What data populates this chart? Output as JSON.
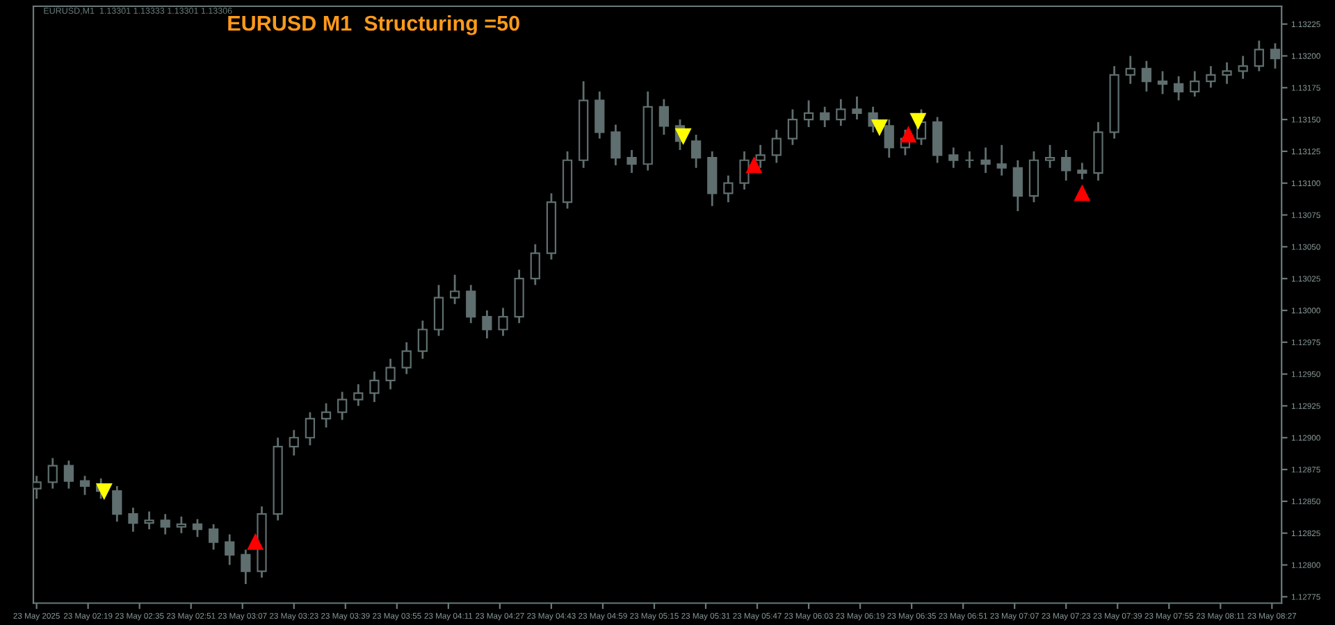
{
  "chart_data": {
    "type": "candlestick",
    "title": "EURUSD M1  Structuring =50",
    "annotations": [
      "EURUSD,M1  1.13301 1.13333 1.13301 1.13306"
    ],
    "color": "#5f6e6e",
    "x": [
      "2025-05-23T02:03",
      "2025-05-23T02:08",
      "2025-05-23T02:13",
      "2025-05-23T02:18",
      "2025-05-23T02:23",
      "2025-05-23T02:28",
      "2025-05-23T02:33",
      "2025-05-23T02:38",
      "2025-05-23T02:43",
      "2025-05-23T02:48",
      "2025-05-23T02:53",
      "2025-05-23T02:58",
      "2025-05-23T03:03",
      "2025-05-23T03:08",
      "2025-05-23T03:13",
      "2025-05-23T03:18",
      "2025-05-23T03:23",
      "2025-05-23T03:28",
      "2025-05-23T03:33",
      "2025-05-23T03:38",
      "2025-05-23T03:43",
      "2025-05-23T03:48",
      "2025-05-23T03:53",
      "2025-05-23T03:58",
      "2025-05-23T04:03",
      "2025-05-23T04:08",
      "2025-05-23T04:13",
      "2025-05-23T04:18",
      "2025-05-23T04:23",
      "2025-05-23T04:28",
      "2025-05-23T04:33",
      "2025-05-23T04:38",
      "2025-05-23T04:43",
      "2025-05-23T04:48",
      "2025-05-23T04:53",
      "2025-05-23T04:58",
      "2025-05-23T05:03",
      "2025-05-23T05:08",
      "2025-05-23T05:13",
      "2025-05-23T05:18",
      "2025-05-23T05:23",
      "2025-05-23T05:28",
      "2025-05-23T05:33",
      "2025-05-23T05:38",
      "2025-05-23T05:43",
      "2025-05-23T05:48",
      "2025-05-23T05:53",
      "2025-05-23T05:58",
      "2025-05-23T06:03",
      "2025-05-23T06:08",
      "2025-05-23T06:13",
      "2025-05-23T06:18",
      "2025-05-23T06:23",
      "2025-05-23T06:28",
      "2025-05-23T06:33",
      "2025-05-23T06:38",
      "2025-05-23T06:43",
      "2025-05-23T06:48",
      "2025-05-23T06:53",
      "2025-05-23T06:58",
      "2025-05-23T07:03",
      "2025-05-23T07:08",
      "2025-05-23T07:13",
      "2025-05-23T07:18",
      "2025-05-23T07:23",
      "2025-05-23T07:28",
      "2025-05-23T07:33",
      "2025-05-23T07:38",
      "2025-05-23T07:43",
      "2025-05-23T07:48",
      "2025-05-23T07:53",
      "2025-05-23T07:58",
      "2025-05-23T08:03",
      "2025-05-23T08:08",
      "2025-05-23T08:13",
      "2025-05-23T08:18",
      "2025-05-23T08:23",
      "2025-05-23T08:28"
    ],
    "ohlc": [
      [
        1.1286,
        1.1287,
        1.12852,
        1.12865
      ],
      [
        1.12865,
        1.12884,
        1.1286,
        1.12878
      ],
      [
        1.12878,
        1.12882,
        1.1286,
        1.12866
      ],
      [
        1.12866,
        1.1287,
        1.12855,
        1.12862
      ],
      [
        1.12862,
        1.12868,
        1.12852,
        1.12858
      ],
      [
        1.12858,
        1.12862,
        1.12834,
        1.1284
      ],
      [
        1.1284,
        1.12845,
        1.12826,
        1.12833
      ],
      [
        1.12833,
        1.12842,
        1.12828,
        1.12835
      ],
      [
        1.12835,
        1.1284,
        1.12824,
        1.1283
      ],
      [
        1.1283,
        1.12838,
        1.12825,
        1.12832
      ],
      [
        1.12832,
        1.12836,
        1.12822,
        1.12828
      ],
      [
        1.12828,
        1.12832,
        1.12812,
        1.12818
      ],
      [
        1.12818,
        1.12824,
        1.128,
        1.12808
      ],
      [
        1.12808,
        1.12812,
        1.12785,
        1.12795
      ],
      [
        1.12795,
        1.12846,
        1.1279,
        1.1284
      ],
      [
        1.1284,
        1.129,
        1.12835,
        1.12893
      ],
      [
        1.12893,
        1.12906,
        1.12886,
        1.129
      ],
      [
        1.129,
        1.1292,
        1.12894,
        1.12915
      ],
      [
        1.12915,
        1.12927,
        1.12908,
        1.1292
      ],
      [
        1.1292,
        1.12936,
        1.12914,
        1.1293
      ],
      [
        1.1293,
        1.12942,
        1.12925,
        1.12935
      ],
      [
        1.12935,
        1.12952,
        1.12928,
        1.12945
      ],
      [
        1.12945,
        1.12962,
        1.12938,
        1.12955
      ],
      [
        1.12955,
        1.12975,
        1.1295,
        1.12968
      ],
      [
        1.12968,
        1.12992,
        1.12962,
        1.12985
      ],
      [
        1.12985,
        1.1302,
        1.1298,
        1.1301
      ],
      [
        1.1301,
        1.13028,
        1.13005,
        1.13015
      ],
      [
        1.13015,
        1.1302,
        1.1299,
        1.12995
      ],
      [
        1.12995,
        1.13,
        1.12978,
        1.12985
      ],
      [
        1.12985,
        1.13002,
        1.1298,
        1.12995
      ],
      [
        1.12995,
        1.13032,
        1.1299,
        1.13025
      ],
      [
        1.13025,
        1.13052,
        1.1302,
        1.13045
      ],
      [
        1.13045,
        1.13092,
        1.1304,
        1.13085
      ],
      [
        1.13085,
        1.13125,
        1.1308,
        1.13118
      ],
      [
        1.13118,
        1.1318,
        1.13112,
        1.13165
      ],
      [
        1.13165,
        1.13172,
        1.13135,
        1.1314
      ],
      [
        1.1314,
        1.13146,
        1.13114,
        1.1312
      ],
      [
        1.1312,
        1.13126,
        1.13108,
        1.13115
      ],
      [
        1.13115,
        1.13172,
        1.1311,
        1.1316
      ],
      [
        1.1316,
        1.13166,
        1.13138,
        1.13145
      ],
      [
        1.13145,
        1.1315,
        1.13126,
        1.13133
      ],
      [
        1.13133,
        1.13138,
        1.13112,
        1.1312
      ],
      [
        1.1312,
        1.13125,
        1.13082,
        1.13092
      ],
      [
        1.13092,
        1.13106,
        1.13085,
        1.131
      ],
      [
        1.131,
        1.13125,
        1.13095,
        1.13118
      ],
      [
        1.13118,
        1.1313,
        1.13112,
        1.13122
      ],
      [
        1.13122,
        1.13142,
        1.13116,
        1.13135
      ],
      [
        1.13135,
        1.13158,
        1.1313,
        1.1315
      ],
      [
        1.1315,
        1.13165,
        1.13144,
        1.13155
      ],
      [
        1.13155,
        1.1316,
        1.13144,
        1.1315
      ],
      [
        1.1315,
        1.13166,
        1.13145,
        1.13158
      ],
      [
        1.13158,
        1.13168,
        1.1315,
        1.13155
      ],
      [
        1.13155,
        1.1316,
        1.1314,
        1.13145
      ],
      [
        1.13145,
        1.1315,
        1.1312,
        1.13128
      ],
      [
        1.13128,
        1.13142,
        1.13122,
        1.13135
      ],
      [
        1.13135,
        1.13158,
        1.1313,
        1.13148
      ],
      [
        1.13148,
        1.13152,
        1.13116,
        1.13122
      ],
      [
        1.13122,
        1.13128,
        1.13112,
        1.13118
      ],
      [
        1.13118,
        1.13125,
        1.13112,
        1.13118
      ],
      [
        1.13118,
        1.13128,
        1.13108,
        1.13115
      ],
      [
        1.13115,
        1.1313,
        1.13106,
        1.13112
      ],
      [
        1.13112,
        1.13118,
        1.13078,
        1.1309
      ],
      [
        1.1309,
        1.13125,
        1.13085,
        1.13118
      ],
      [
        1.13118,
        1.1313,
        1.13112,
        1.1312
      ],
      [
        1.1312,
        1.13126,
        1.13102,
        1.1311
      ],
      [
        1.1311,
        1.13116,
        1.13103,
        1.13108
      ],
      [
        1.13108,
        1.13148,
        1.13102,
        1.1314
      ],
      [
        1.1314,
        1.13192,
        1.13135,
        1.13185
      ],
      [
        1.13185,
        1.132,
        1.13178,
        1.1319
      ],
      [
        1.1319,
        1.13196,
        1.13172,
        1.1318
      ],
      [
        1.1318,
        1.13188,
        1.1317,
        1.13178
      ],
      [
        1.13178,
        1.13184,
        1.13165,
        1.13172
      ],
      [
        1.13172,
        1.13188,
        1.13168,
        1.1318
      ],
      [
        1.1318,
        1.13192,
        1.13175,
        1.13185
      ],
      [
        1.13185,
        1.13195,
        1.13178,
        1.13188
      ],
      [
        1.13188,
        1.132,
        1.13182,
        1.13192
      ],
      [
        1.13192,
        1.13212,
        1.13188,
        1.13205
      ],
      [
        1.13205,
        1.1321,
        1.1319,
        1.13198
      ]
    ],
    "series": [
      {
        "type": "scatter",
        "color": "#ffff00",
        "x": [
          "2025-05-23T02:24",
          "2025-05-23T05:24",
          "2025-05-23T06:25",
          "2025-05-23T06:37"
        ],
        "values": [
          1.12858,
          1.13137,
          1.13144,
          1.13149
        ]
      },
      {
        "type": "scatter",
        "color": "#ff0000",
        "x": [
          "2025-05-23T03:11",
          "2025-05-23T05:46",
          "2025-05-23T06:34",
          "2025-05-23T07:28"
        ],
        "values": [
          1.12818,
          1.13114,
          1.13138,
          1.13092
        ]
      }
    ],
    "marker": "triangle",
    "xlim": [
      "2025-05-23T02:02",
      "2025-05-23T08:30"
    ],
    "xticks": [
      {
        "value": "2025-05-23T02:03",
        "label": "23 May 2025"
      },
      {
        "value": "2025-05-23T02:19",
        "label": "23 May 02:19"
      },
      {
        "value": "2025-05-23T02:35",
        "label": "23 May 02:35"
      },
      {
        "value": "2025-05-23T02:51",
        "label": "23 May 02:51"
      },
      {
        "value": "2025-05-23T03:07",
        "label": "23 May 03:07"
      },
      {
        "value": "2025-05-23T03:23",
        "label": "23 May 03:23"
      },
      {
        "value": "2025-05-23T03:39",
        "label": "23 May 03:39"
      },
      {
        "value": "2025-05-23T03:55",
        "label": "23 May 03:55"
      },
      {
        "value": "2025-05-23T04:11",
        "label": "23 May 04:11"
      },
      {
        "value": "2025-05-23T04:27",
        "label": "23 May 04:27"
      },
      {
        "value": "2025-05-23T04:43",
        "label": "23 May 04:43"
      },
      {
        "value": "2025-05-23T04:59",
        "label": "23 May 04:59"
      },
      {
        "value": "2025-05-23T05:15",
        "label": "23 May 05:15"
      },
      {
        "value": "2025-05-23T05:31",
        "label": "23 May 05:31"
      },
      {
        "value": "2025-05-23T05:47",
        "label": "23 May 05:47"
      },
      {
        "value": "2025-05-23T06:03",
        "label": "23 May 06:03"
      },
      {
        "value": "2025-05-23T06:19",
        "label": "23 May 06:19"
      },
      {
        "value": "2025-05-23T06:35",
        "label": "23 May 06:35"
      },
      {
        "value": "2025-05-23T06:51",
        "label": "23 May 06:51"
      },
      {
        "value": "2025-05-23T07:07",
        "label": "23 May 07:07"
      },
      {
        "value": "2025-05-23T07:23",
        "label": "23 May 07:23"
      },
      {
        "value": "2025-05-23T07:39",
        "label": "23 May 07:39"
      },
      {
        "value": "2025-05-23T07:55",
        "label": "23 May 07:55"
      },
      {
        "value": "2025-05-23T08:11",
        "label": "23 May 08:11"
      },
      {
        "value": "2025-05-23T08:27",
        "label": "23 May 08:27"
      }
    ],
    "ylim": [
      1.1277,
      1.13239
    ],
    "yticks": [
      1.12775,
      {
        "value": 1.128,
        "label": "1.12800"
      },
      1.12825,
      {
        "value": 1.1285,
        "label": "1.12850"
      },
      1.12875,
      {
        "value": 1.129,
        "label": "1.12900"
      },
      1.12925,
      {
        "value": 1.1295,
        "label": "1.12950"
      },
      1.12975,
      {
        "value": 1.13,
        "label": "1.13000"
      },
      1.13025,
      {
        "value": 1.1305,
        "label": "1.13050"
      },
      1.13075,
      {
        "value": 1.131,
        "label": "1.13100"
      },
      1.13125,
      {
        "value": 1.1315,
        "label": "1.13150"
      },
      1.13175,
      {
        "value": 1.132,
        "label": "1.13200"
      },
      1.13225
    ],
    "grid": false,
    "legend": false
  }
}
